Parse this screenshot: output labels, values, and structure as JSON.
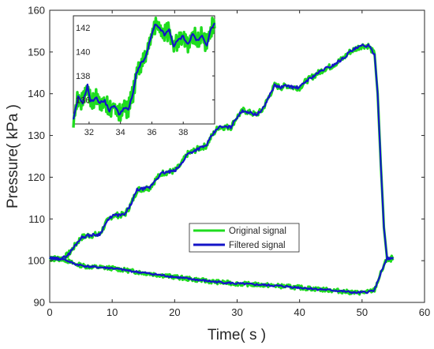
{
  "chart_data": {
    "type": "line",
    "title": "",
    "xlabel": "Time( s )",
    "ylabel": "Pressure( kPa )",
    "xlim": [
      0,
      60
    ],
    "ylim": [
      90,
      160
    ],
    "xticks": [
      0,
      10,
      20,
      30,
      40,
      50,
      60
    ],
    "yticks": [
      90,
      100,
      110,
      120,
      130,
      140,
      150,
      160
    ],
    "grid": false,
    "legend": {
      "position": "center-bottom",
      "entries": [
        "Original signal",
        "Filtered signal"
      ]
    },
    "colors": {
      "original": "#1fdc1f",
      "filtered": "#1414c8"
    },
    "series": [
      {
        "name": "Original signal",
        "description": "raw noisy signal",
        "upper": [
          [
            0,
            100.5
          ],
          [
            2,
            100.5
          ],
          [
            3,
            101.5
          ],
          [
            4,
            103.5
          ],
          [
            5,
            105.5
          ],
          [
            6,
            106
          ],
          [
            8,
            106.3
          ],
          [
            9,
            109
          ],
          [
            10,
            110.8
          ],
          [
            12,
            111
          ],
          [
            13,
            113.5
          ],
          [
            14,
            117
          ],
          [
            16,
            117.5
          ],
          [
            17,
            119.5
          ],
          [
            18,
            121
          ],
          [
            20,
            121.5
          ],
          [
            21,
            123
          ],
          [
            22,
            125.5
          ],
          [
            24,
            127
          ],
          [
            25,
            127.5
          ],
          [
            26,
            130
          ],
          [
            27,
            132
          ],
          [
            29,
            132
          ],
          [
            30,
            134.5
          ],
          [
            31,
            136
          ],
          [
            32,
            135.5
          ],
          [
            33,
            135
          ],
          [
            34,
            136
          ],
          [
            35,
            139
          ],
          [
            36,
            142
          ],
          [
            37,
            141.5
          ],
          [
            38,
            142
          ],
          [
            39,
            141.5
          ],
          [
            40,
            141.5
          ],
          [
            41,
            143
          ],
          [
            42,
            144
          ],
          [
            43,
            145
          ],
          [
            44,
            146
          ],
          [
            45,
            146.5
          ],
          [
            46,
            147.5
          ],
          [
            47,
            148.5
          ],
          [
            48,
            150
          ],
          [
            49,
            150.8
          ],
          [
            50,
            151.5
          ],
          [
            51,
            151.5
          ],
          [
            52,
            149.5
          ],
          [
            52.5,
            140
          ],
          [
            53,
            123
          ],
          [
            53.5,
            108
          ],
          [
            54,
            100.5
          ],
          [
            55,
            100.5
          ]
        ],
        "lower": [
          [
            0,
            100.5
          ],
          [
            2,
            100.5
          ],
          [
            4,
            99.2
          ],
          [
            6,
            98.6
          ],
          [
            10,
            98.2
          ],
          [
            14,
            97.3
          ],
          [
            18,
            96.5
          ],
          [
            22,
            95.7
          ],
          [
            26,
            95
          ],
          [
            30,
            94.5
          ],
          [
            34,
            94.2
          ],
          [
            38,
            93.8
          ],
          [
            42,
            93.3
          ],
          [
            46,
            92.8
          ],
          [
            49,
            92.3
          ],
          [
            51,
            92.5
          ],
          [
            52,
            93
          ],
          [
            53,
            97
          ],
          [
            54,
            100.5
          ],
          [
            55,
            100.5
          ]
        ]
      },
      {
        "name": "Filtered signal",
        "description": "smoothed signal",
        "upper": [
          [
            0,
            100.5
          ],
          [
            2,
            100.5
          ],
          [
            3,
            101.5
          ],
          [
            4,
            103.5
          ],
          [
            5,
            105.5
          ],
          [
            6,
            106
          ],
          [
            8,
            106.3
          ],
          [
            9,
            109
          ],
          [
            10,
            110.8
          ],
          [
            12,
            111
          ],
          [
            13,
            113.5
          ],
          [
            14,
            117
          ],
          [
            16,
            117.5
          ],
          [
            17,
            119.5
          ],
          [
            18,
            121
          ],
          [
            20,
            121.5
          ],
          [
            21,
            123
          ],
          [
            22,
            125.5
          ],
          [
            24,
            127
          ],
          [
            25,
            127.5
          ],
          [
            26,
            130
          ],
          [
            27,
            132
          ],
          [
            29,
            132
          ],
          [
            30,
            134.5
          ],
          [
            31,
            136
          ],
          [
            32,
            135.5
          ],
          [
            33,
            135
          ],
          [
            34,
            136
          ],
          [
            35,
            139
          ],
          [
            36,
            142
          ],
          [
            37,
            141.5
          ],
          [
            38,
            142
          ],
          [
            39,
            141.5
          ],
          [
            40,
            141.5
          ],
          [
            41,
            143
          ],
          [
            42,
            144
          ],
          [
            43,
            145
          ],
          [
            44,
            146
          ],
          [
            45,
            146.5
          ],
          [
            46,
            147.5
          ],
          [
            47,
            148.5
          ],
          [
            48,
            150
          ],
          [
            49,
            150.8
          ],
          [
            50,
            151.5
          ],
          [
            51,
            151.5
          ],
          [
            52,
            149.5
          ],
          [
            52.5,
            140
          ],
          [
            53,
            123
          ],
          [
            53.5,
            108
          ],
          [
            54,
            100.5
          ],
          [
            55,
            100.5
          ]
        ],
        "lower": [
          [
            0,
            100.5
          ],
          [
            2,
            100.5
          ],
          [
            4,
            99.2
          ],
          [
            6,
            98.6
          ],
          [
            10,
            98.2
          ],
          [
            14,
            97.3
          ],
          [
            18,
            96.5
          ],
          [
            22,
            95.7
          ],
          [
            26,
            95
          ],
          [
            30,
            94.5
          ],
          [
            34,
            94.2
          ],
          [
            38,
            93.8
          ],
          [
            42,
            93.3
          ],
          [
            46,
            92.8
          ],
          [
            49,
            92.3
          ],
          [
            51,
            92.5
          ],
          [
            52,
            93
          ],
          [
            53,
            97
          ],
          [
            54,
            100.5
          ],
          [
            55,
            100.5
          ]
        ]
      }
    ],
    "inset": {
      "xlim": [
        31,
        40
      ],
      "ylim": [
        134,
        143
      ],
      "xticks": [
        32,
        34,
        36,
        38
      ],
      "yticks": [
        136,
        138,
        140,
        142
      ],
      "points": [
        [
          31,
          134.3
        ],
        [
          31.3,
          136.2
        ],
        [
          31.6,
          135.8
        ],
        [
          31.9,
          137.2
        ],
        [
          32.1,
          135.8
        ],
        [
          32.4,
          136.2
        ],
        [
          32.7,
          135.8
        ],
        [
          33,
          135.9
        ],
        [
          33.3,
          135.1
        ],
        [
          33.6,
          135.6
        ],
        [
          33.9,
          134.8
        ],
        [
          34.2,
          135.3
        ],
        [
          34.5,
          135.2
        ],
        [
          34.8,
          136.5
        ],
        [
          35,
          138.2
        ],
        [
          35.3,
          139
        ],
        [
          35.6,
          139.5
        ],
        [
          35.9,
          141
        ],
        [
          36.2,
          142.2
        ],
        [
          36.5,
          142
        ],
        [
          36.8,
          141.4
        ],
        [
          37.1,
          141.8
        ],
        [
          37.4,
          140.5
        ],
        [
          37.7,
          141
        ],
        [
          38,
          141.3
        ],
        [
          38.3,
          140.6
        ],
        [
          38.6,
          141.5
        ],
        [
          38.9,
          140.9
        ],
        [
          39.2,
          141.3
        ],
        [
          39.5,
          140.6
        ],
        [
          39.8,
          142
        ],
        [
          40,
          142.4
        ]
      ]
    }
  }
}
